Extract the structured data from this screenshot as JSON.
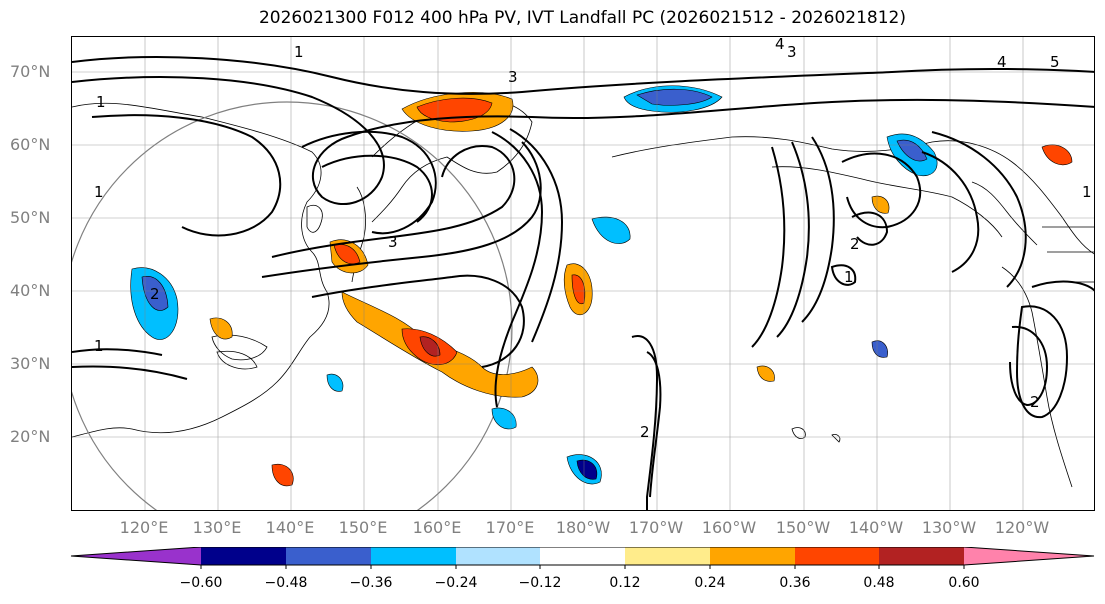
{
  "title": "2026021300 F012 400 hPa PV, IVT Landfall PC (2026021512 - 2026021812)",
  "map": {
    "lat_labels": [
      "70°N",
      "60°N",
      "50°N",
      "40°N",
      "30°N",
      "20°N"
    ],
    "lon_labels": [
      "120°E",
      "130°E",
      "140°E",
      "150°E",
      "160°E",
      "170°E",
      "180°W",
      "170°W",
      "160°W",
      "150°W",
      "140°W",
      "130°W",
      "120°W"
    ],
    "contour_labels": [
      "1",
      "1",
      "1",
      "1",
      "2",
      "2",
      "2",
      "3",
      "3",
      "3",
      "4",
      "4",
      "5",
      "1",
      "2",
      "1"
    ]
  },
  "colorbar": {
    "colors": [
      "#9932CC",
      "#00008B",
      "#3A5FCD",
      "#00BFFF",
      "#B0E2FF",
      "#FFFFFF",
      "#FFEC8B",
      "#FFA500",
      "#FF4500",
      "#B22222",
      "#FF82AB"
    ],
    "tick_labels": [
      "−0.60",
      "−0.48",
      "−0.36",
      "−0.24",
      "−0.12",
      "0.12",
      "0.24",
      "0.36",
      "0.48",
      "0.60"
    ]
  }
}
